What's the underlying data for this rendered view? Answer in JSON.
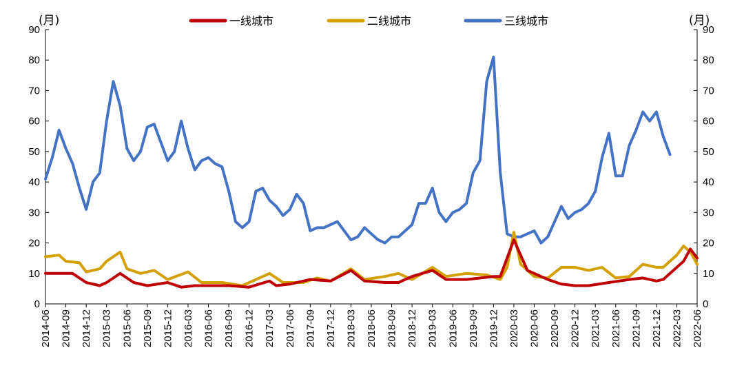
{
  "chart_data": {
    "type": "line",
    "y_unit_left": "(月)",
    "y_unit_right": "(月)",
    "ylim": [
      0,
      90
    ],
    "yticks": [
      0,
      10,
      20,
      30,
      40,
      50,
      60,
      70,
      80,
      90
    ],
    "x_start": "2014-06",
    "x_end": "2022-06",
    "x_tick_labels": [
      "2014-06",
      "2014-09",
      "2014-12",
      "2015-03",
      "2015-06",
      "2015-09",
      "2015-12",
      "2016-03",
      "2016-06",
      "2016-09",
      "2016-12",
      "2017-03",
      "2017-06",
      "2017-09",
      "2017-12",
      "2018-03",
      "2018-06",
      "2018-09",
      "2018-12",
      "2019-03",
      "2019-06",
      "2019-09",
      "2019-12",
      "2020-03",
      "2020-06",
      "2020-09",
      "2020-12",
      "2021-03",
      "2021-06",
      "2021-09",
      "2021-12",
      "2022-03",
      "2022-06"
    ],
    "legend": "top-center",
    "grid": false,
    "series": [
      {
        "name": "一线城市",
        "color": "#c00000",
        "points": [
          [
            "2014-06",
            10
          ],
          [
            "2014-08",
            10
          ],
          [
            "2014-10",
            10
          ],
          [
            "2014-12",
            7
          ],
          [
            "2015-02",
            6
          ],
          [
            "2015-03",
            7
          ],
          [
            "2015-05",
            10
          ],
          [
            "2015-07",
            7
          ],
          [
            "2015-09",
            6
          ],
          [
            "2015-12",
            7
          ],
          [
            "2016-02",
            5.5
          ],
          [
            "2016-04",
            6
          ],
          [
            "2016-06",
            6
          ],
          [
            "2016-09",
            6
          ],
          [
            "2016-12",
            5.5
          ],
          [
            "2017-03",
            7.5
          ],
          [
            "2017-04",
            6
          ],
          [
            "2017-06",
            6.5
          ],
          [
            "2017-09",
            8
          ],
          [
            "2017-12",
            7.5
          ],
          [
            "2018-03",
            11
          ],
          [
            "2018-05",
            7.5
          ],
          [
            "2018-08",
            7
          ],
          [
            "2018-10",
            7
          ],
          [
            "2018-12",
            9
          ],
          [
            "2019-03",
            11
          ],
          [
            "2019-05",
            8
          ],
          [
            "2019-08",
            8
          ],
          [
            "2019-12",
            9
          ],
          [
            "2020-01",
            9
          ],
          [
            "2020-03",
            21
          ],
          [
            "2020-05",
            11
          ],
          [
            "2020-08",
            8
          ],
          [
            "2020-10",
            6.5
          ],
          [
            "2020-12",
            6
          ],
          [
            "2021-02",
            6
          ],
          [
            "2021-05",
            7
          ],
          [
            "2021-08",
            8
          ],
          [
            "2021-10",
            8.5
          ],
          [
            "2021-12",
            7.5
          ],
          [
            "2022-01",
            8
          ],
          [
            "2022-04",
            14
          ],
          [
            "2022-05",
            18
          ],
          [
            "2022-06",
            15
          ]
        ]
      },
      {
        "name": "二线城市",
        "color": "#d4a000",
        "points": [
          [
            "2014-06",
            15.5
          ],
          [
            "2014-08",
            16
          ],
          [
            "2014-09",
            14
          ],
          [
            "2014-11",
            13.5
          ],
          [
            "2014-12",
            10.5
          ],
          [
            "2015-02",
            11.5
          ],
          [
            "2015-03",
            14
          ],
          [
            "2015-05",
            17
          ],
          [
            "2015-06",
            11.5
          ],
          [
            "2015-08",
            10
          ],
          [
            "2015-10",
            11
          ],
          [
            "2015-12",
            8
          ],
          [
            "2016-03",
            10.5
          ],
          [
            "2016-05",
            7
          ],
          [
            "2016-08",
            7
          ],
          [
            "2016-11",
            6
          ],
          [
            "2017-03",
            10
          ],
          [
            "2017-05",
            7
          ],
          [
            "2017-08",
            7
          ],
          [
            "2017-10",
            8.5
          ],
          [
            "2017-12",
            7.5
          ],
          [
            "2018-03",
            11.5
          ],
          [
            "2018-05",
            8
          ],
          [
            "2018-08",
            9
          ],
          [
            "2018-10",
            10
          ],
          [
            "2018-12",
            8
          ],
          [
            "2019-03",
            12
          ],
          [
            "2019-05",
            9
          ],
          [
            "2019-08",
            10
          ],
          [
            "2019-11",
            9.5
          ],
          [
            "2020-01",
            8
          ],
          [
            "2020-02",
            12
          ],
          [
            "2020-03",
            23.5
          ],
          [
            "2020-04",
            13
          ],
          [
            "2020-06",
            9
          ],
          [
            "2020-08",
            8.5
          ],
          [
            "2020-10",
            12
          ],
          [
            "2020-12",
            12
          ],
          [
            "2021-02",
            11
          ],
          [
            "2021-04",
            12
          ],
          [
            "2021-06",
            8.5
          ],
          [
            "2021-08",
            9
          ],
          [
            "2021-10",
            13
          ],
          [
            "2021-12",
            12
          ],
          [
            "2022-01",
            12
          ],
          [
            "2022-03",
            16
          ],
          [
            "2022-04",
            19
          ],
          [
            "2022-05",
            17
          ],
          [
            "2022-06",
            13
          ]
        ]
      },
      {
        "name": "三线城市",
        "color": "#4472c4",
        "points": [
          [
            "2014-06",
            41
          ],
          [
            "2014-07",
            48
          ],
          [
            "2014-08",
            57
          ],
          [
            "2014-09",
            51
          ],
          [
            "2014-10",
            46
          ],
          [
            "2014-11",
            38
          ],
          [
            "2014-12",
            31
          ],
          [
            "2015-01",
            40
          ],
          [
            "2015-02",
            43
          ],
          [
            "2015-03",
            60
          ],
          [
            "2015-04",
            73
          ],
          [
            "2015-05",
            65
          ],
          [
            "2015-06",
            51
          ],
          [
            "2015-07",
            47
          ],
          [
            "2015-08",
            50
          ],
          [
            "2015-09",
            58
          ],
          [
            "2015-10",
            59
          ],
          [
            "2015-11",
            53
          ],
          [
            "2015-12",
            47
          ],
          [
            "2016-01",
            50
          ],
          [
            "2016-02",
            60
          ],
          [
            "2016-03",
            51
          ],
          [
            "2016-04",
            44
          ],
          [
            "2016-05",
            47
          ],
          [
            "2016-06",
            48
          ],
          [
            "2016-07",
            46
          ],
          [
            "2016-08",
            45
          ],
          [
            "2016-09",
            37
          ],
          [
            "2016-10",
            27
          ],
          [
            "2016-11",
            25
          ],
          [
            "2016-12",
            27
          ],
          [
            "2017-01",
            37
          ],
          [
            "2017-02",
            38
          ],
          [
            "2017-03",
            34
          ],
          [
            "2017-04",
            32
          ],
          [
            "2017-05",
            29
          ],
          [
            "2017-06",
            31
          ],
          [
            "2017-07",
            36
          ],
          [
            "2017-08",
            33
          ],
          [
            "2017-09",
            24
          ],
          [
            "2017-10",
            25
          ],
          [
            "2017-11",
            25
          ],
          [
            "2017-12",
            26
          ],
          [
            "2018-01",
            27
          ],
          [
            "2018-02",
            24
          ],
          [
            "2018-03",
            21
          ],
          [
            "2018-04",
            22
          ],
          [
            "2018-05",
            25
          ],
          [
            "2018-06",
            23
          ],
          [
            "2018-07",
            21
          ],
          [
            "2018-08",
            20
          ],
          [
            "2018-09",
            22
          ],
          [
            "2018-10",
            22
          ],
          [
            "2018-11",
            24
          ],
          [
            "2018-12",
            26
          ],
          [
            "2019-01",
            33
          ],
          [
            "2019-02",
            33
          ],
          [
            "2019-03",
            38
          ],
          [
            "2019-04",
            30
          ],
          [
            "2019-05",
            27
          ],
          [
            "2019-06",
            30
          ],
          [
            "2019-07",
            31
          ],
          [
            "2019-08",
            33
          ],
          [
            "2019-09",
            43
          ],
          [
            "2019-10",
            47
          ],
          [
            "2019-11",
            73
          ],
          [
            "2019-12",
            81
          ],
          [
            "2020-01",
            43
          ],
          [
            "2020-02",
            23
          ],
          [
            "2020-03",
            22
          ],
          [
            "2020-04",
            22
          ],
          [
            "2020-05",
            23
          ],
          [
            "2020-06",
            24
          ],
          [
            "2020-07",
            20
          ],
          [
            "2020-08",
            22
          ],
          [
            "2020-09",
            27
          ],
          [
            "2020-10",
            32
          ],
          [
            "2020-11",
            28
          ],
          [
            "2020-12",
            30
          ],
          [
            "2021-01",
            31
          ],
          [
            "2021-02",
            33
          ],
          [
            "2021-03",
            37
          ],
          [
            "2021-04",
            48
          ],
          [
            "2021-05",
            56
          ],
          [
            "2021-06",
            42
          ],
          [
            "2021-07",
            42
          ],
          [
            "2021-08",
            52
          ],
          [
            "2021-09",
            57
          ],
          [
            "2021-10",
            63
          ],
          [
            "2021-11",
            60
          ],
          [
            "2021-12",
            63
          ],
          [
            "2022-01",
            55
          ],
          [
            "2022-02",
            49
          ]
        ]
      }
    ]
  }
}
